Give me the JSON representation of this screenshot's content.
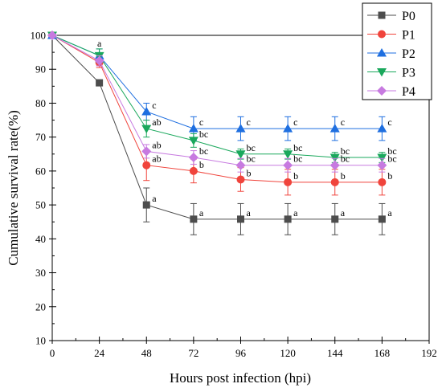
{
  "chart_data": {
    "type": "line",
    "xlabel": "Hours post infection (hpi)",
    "ylabel": "Cumulative survival rate(%)",
    "xlim": [
      0,
      192
    ],
    "ylim": [
      10,
      100
    ],
    "x_ticks": [
      "0",
      "24",
      "48",
      "72",
      "96",
      "120",
      "144",
      "168",
      "192"
    ],
    "y_ticks": [
      "10",
      "20",
      "30",
      "40",
      "50",
      "60",
      "70",
      "80",
      "90",
      "100"
    ],
    "legend_position": "top-right",
    "grid": false,
    "series": [
      {
        "name": "P0",
        "color": "#4d4d4d",
        "marker": "square",
        "x": [
          0,
          24,
          48,
          72,
          96,
          120,
          144,
          168
        ],
        "y": [
          100,
          86,
          50,
          45.8,
          45.8,
          45.8,
          45.8,
          45.8
        ],
        "err": [
          0,
          0,
          5,
          4.6,
          4.6,
          4.6,
          4.6,
          4.6
        ],
        "labels": [
          "",
          "",
          "a",
          "a",
          "a",
          "a",
          "a",
          "a"
        ]
      },
      {
        "name": "P1",
        "color": "#f0443c",
        "marker": "circle",
        "x": [
          0,
          24,
          48,
          72,
          96,
          120,
          144,
          168
        ],
        "y": [
          100,
          92,
          61.7,
          60,
          57.5,
          56.7,
          56.7,
          56.7
        ],
        "err": [
          0,
          1.5,
          4.5,
          3.5,
          3.5,
          3.8,
          3.8,
          3.8
        ],
        "labels": [
          "",
          "",
          "ab",
          "b",
          "b",
          "b",
          "b",
          "b"
        ]
      },
      {
        "name": "P2",
        "color": "#1f6fe0",
        "marker": "triangle-up",
        "x": [
          0,
          24,
          48,
          72,
          96,
          120,
          144,
          168
        ],
        "y": [
          100,
          94,
          77.5,
          72.5,
          72.5,
          72.5,
          72.5,
          72.5
        ],
        "err": [
          0,
          2,
          2.5,
          3.5,
          3.5,
          3.5,
          3.5,
          3.5
        ],
        "labels": [
          "",
          "a",
          "c",
          "c",
          "c",
          "c",
          "c",
          "c"
        ]
      },
      {
        "name": "P3",
        "color": "#1aa85c",
        "marker": "triangle-down",
        "x": [
          0,
          24,
          48,
          72,
          96,
          120,
          144,
          168
        ],
        "y": [
          100,
          94,
          72.5,
          69,
          65,
          65,
          64,
          64
        ],
        "err": [
          0,
          2,
          2.5,
          2,
          1.5,
          1.5,
          1.5,
          1.5
        ],
        "labels": [
          "",
          "",
          "ab",
          "bc",
          "bc",
          "bc",
          "bc",
          "bc"
        ]
      },
      {
        "name": "P4",
        "color": "#c77ae0",
        "marker": "diamond",
        "x": [
          0,
          24,
          48,
          72,
          96,
          120,
          144,
          168
        ],
        "y": [
          100,
          92.5,
          65.8,
          64,
          61.7,
          61.7,
          61.7,
          61.7
        ],
        "err": [
          0,
          1.5,
          2,
          2,
          2,
          2,
          2,
          2
        ],
        "labels": [
          "",
          "",
          "ab",
          "bc",
          "bc",
          "bc",
          "bc",
          "bc"
        ]
      }
    ]
  }
}
